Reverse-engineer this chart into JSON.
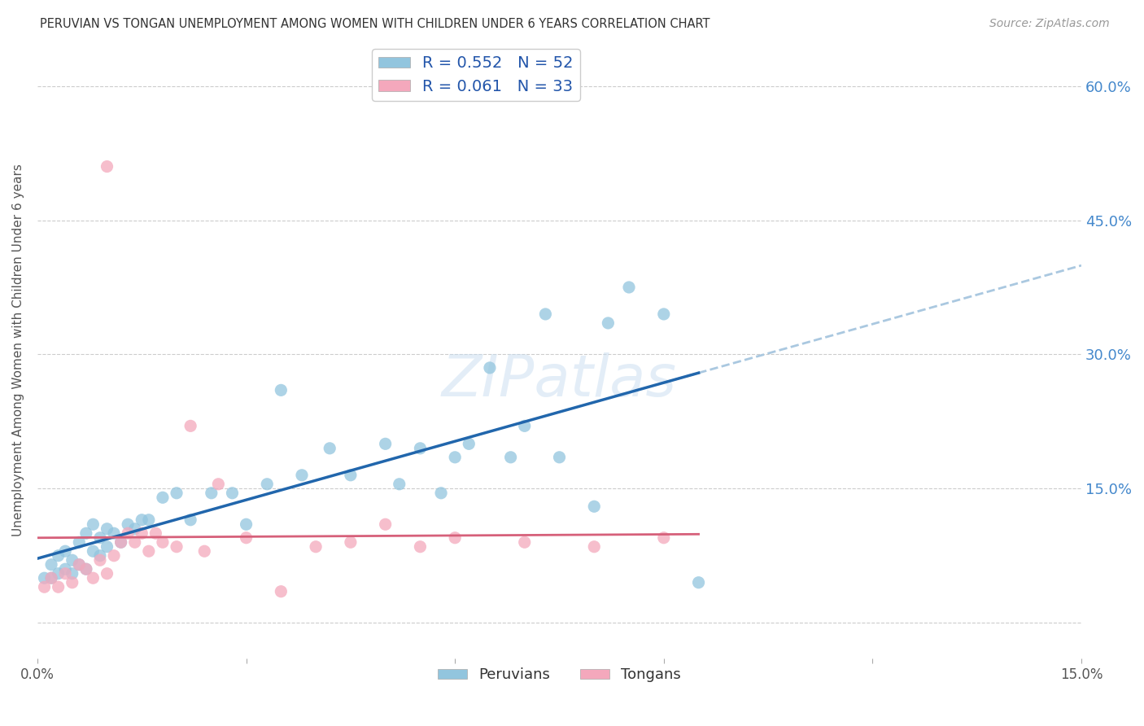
{
  "title": "PERUVIAN VS TONGAN UNEMPLOYMENT AMONG WOMEN WITH CHILDREN UNDER 6 YEARS CORRELATION CHART",
  "source": "Source: ZipAtlas.com",
  "ylabel": "Unemployment Among Women with Children Under 6 years",
  "xlim": [
    0.0,
    0.15
  ],
  "ylim": [
    -0.04,
    0.65
  ],
  "ytick_labels_right": [
    "",
    "15.0%",
    "30.0%",
    "45.0%",
    "60.0%"
  ],
  "ytick_vals_right": [
    0.0,
    0.15,
    0.3,
    0.45,
    0.6
  ],
  "peruvian_color": "#92c5de",
  "tongan_color": "#f4a8bc",
  "peruvian_line_color": "#2166ac",
  "tongan_line_color": "#d6607a",
  "dashed_line_color": "#aac8e0",
  "legend_R_peruvian": "R = 0.552",
  "legend_N_peruvian": "N = 52",
  "legend_R_tongan": "R = 0.061",
  "legend_N_tongan": "N = 33",
  "peruvians_x": [
    0.001,
    0.002,
    0.002,
    0.003,
    0.003,
    0.004,
    0.004,
    0.005,
    0.005,
    0.006,
    0.006,
    0.007,
    0.007,
    0.008,
    0.008,
    0.009,
    0.009,
    0.01,
    0.01,
    0.011,
    0.012,
    0.013,
    0.014,
    0.015,
    0.016,
    0.018,
    0.02,
    0.022,
    0.025,
    0.028,
    0.03,
    0.033,
    0.035,
    0.038,
    0.042,
    0.045,
    0.05,
    0.052,
    0.055,
    0.058,
    0.06,
    0.062,
    0.065,
    0.068,
    0.07,
    0.073,
    0.075,
    0.08,
    0.082,
    0.085,
    0.09,
    0.095
  ],
  "peruvians_y": [
    0.05,
    0.065,
    0.05,
    0.055,
    0.075,
    0.06,
    0.08,
    0.055,
    0.07,
    0.065,
    0.09,
    0.06,
    0.1,
    0.08,
    0.11,
    0.075,
    0.095,
    0.085,
    0.105,
    0.1,
    0.09,
    0.11,
    0.105,
    0.115,
    0.115,
    0.14,
    0.145,
    0.115,
    0.145,
    0.145,
    0.11,
    0.155,
    0.26,
    0.165,
    0.195,
    0.165,
    0.2,
    0.155,
    0.195,
    0.145,
    0.185,
    0.2,
    0.285,
    0.185,
    0.22,
    0.345,
    0.185,
    0.13,
    0.335,
    0.375,
    0.345,
    0.045
  ],
  "tongans_x": [
    0.001,
    0.002,
    0.003,
    0.004,
    0.005,
    0.006,
    0.007,
    0.008,
    0.009,
    0.01,
    0.011,
    0.012,
    0.013,
    0.014,
    0.015,
    0.016,
    0.017,
    0.018,
    0.02,
    0.022,
    0.024,
    0.026,
    0.03,
    0.035,
    0.04,
    0.045,
    0.05,
    0.055,
    0.06,
    0.07,
    0.08,
    0.09,
    0.01
  ],
  "tongans_y": [
    0.04,
    0.05,
    0.04,
    0.055,
    0.045,
    0.065,
    0.06,
    0.05,
    0.07,
    0.055,
    0.075,
    0.09,
    0.1,
    0.09,
    0.1,
    0.08,
    0.1,
    0.09,
    0.085,
    0.22,
    0.08,
    0.155,
    0.095,
    0.035,
    0.085,
    0.09,
    0.11,
    0.085,
    0.095,
    0.09,
    0.085,
    0.095,
    0.51
  ],
  "background_color": "#ffffff",
  "grid_color": "#cccccc"
}
